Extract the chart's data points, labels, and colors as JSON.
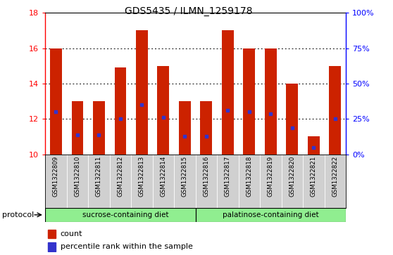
{
  "title": "GDS5435 / ILMN_1259178",
  "samples": [
    "GSM1322809",
    "GSM1322810",
    "GSM1322811",
    "GSM1322812",
    "GSM1322813",
    "GSM1322814",
    "GSM1322815",
    "GSM1322816",
    "GSM1322817",
    "GSM1322818",
    "GSM1322819",
    "GSM1322820",
    "GSM1322821",
    "GSM1322822"
  ],
  "bar_tops": [
    16.0,
    13.0,
    13.0,
    14.9,
    17.0,
    15.0,
    13.0,
    13.0,
    17.0,
    16.0,
    16.0,
    14.0,
    11.0,
    15.0
  ],
  "bar_bottoms": [
    10.0,
    10.0,
    10.0,
    10.0,
    10.0,
    10.0,
    10.0,
    10.0,
    10.0,
    10.0,
    10.0,
    10.0,
    10.0,
    10.0
  ],
  "blue_positions": [
    12.4,
    11.1,
    11.1,
    12.0,
    12.8,
    12.1,
    11.0,
    11.0,
    12.5,
    12.4,
    12.3,
    11.5,
    10.4,
    12.0
  ],
  "bar_color": "#cc2200",
  "blue_color": "#3333cc",
  "ylim_left": [
    10,
    18
  ],
  "ylim_right": [
    0,
    100
  ],
  "yticks_left": [
    10,
    12,
    14,
    16,
    18
  ],
  "yticks_right": [
    0,
    25,
    50,
    75,
    100
  ],
  "ytick_labels_right": [
    "0%",
    "25%",
    "50%",
    "75%",
    "100%"
  ],
  "sucrose_label": "sucrose-containing diet",
  "palatinose_label": "palatinose-containing diet",
  "sucrose_count": 7,
  "palatinose_count": 7,
  "protocol_label": "protocol",
  "legend_count": "count",
  "legend_percentile": "percentile rank within the sample",
  "bar_width": 0.55,
  "group_bg": "#90ee90",
  "tick_bg": "#d0d0d0"
}
